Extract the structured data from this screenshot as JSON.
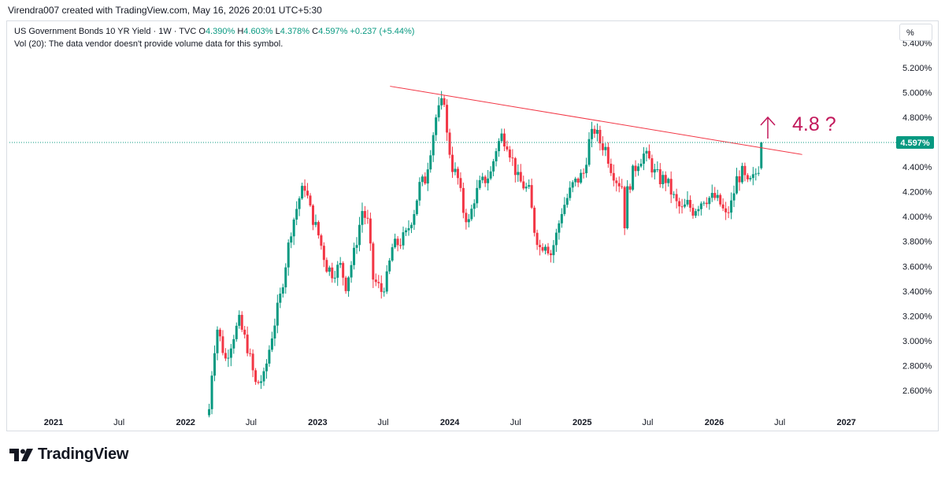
{
  "header": {
    "text": "Virendra007 created with TradingView.com, May 16, 2026 20:01 UTC+5:30"
  },
  "legend": {
    "symbol": "US Government Bonds 10 YR Yield · 1W · TVC",
    "open_label": "O",
    "open": "4.390%",
    "high_label": "H",
    "high": "4.603%",
    "low_label": "L",
    "low": "4.378%",
    "close_label": "C",
    "close": "4.597%",
    "change": "+0.237 (+5.44%)",
    "vol": "Vol (20): The data vendor doesn't provide volume data for this symbol."
  },
  "toolbar": {
    "percent_button": "%"
  },
  "footer": {
    "brand": "TradingView"
  },
  "colors": {
    "up": "#089981",
    "down": "#f23645",
    "trendline": "#f23645",
    "annotation": "#c2185b",
    "price_line": "#089981"
  },
  "chart_data": {
    "type": "candlestick",
    "title": "US Government Bonds 10 YR Yield",
    "timeframe": "1W",
    "source": "TVC",
    "y_range": [
      2.45,
      5.5
    ],
    "y_ticks": [
      "2.600%",
      "2.800%",
      "3.000%",
      "3.200%",
      "3.400%",
      "3.600%",
      "3.800%",
      "4.000%",
      "4.200%",
      "4.400%",
      "4.600%",
      "4.800%",
      "5.000%",
      "5.200%",
      "5.400%"
    ],
    "x_ticks": [
      "2021",
      "Jul",
      "2022",
      "Jul",
      "2023",
      "Jul",
      "2024",
      "Jul",
      "2025",
      "Jul",
      "2026",
      "Jul",
      "2027"
    ],
    "last_price": "4.597%",
    "trendline": {
      "from": {
        "date": "2023-07-20",
        "value": 5.05
      },
      "to": {
        "date": "2026-09-01",
        "value": 4.5
      }
    },
    "annotation": {
      "text": "4.8 ?",
      "arrow": "up"
    },
    "candles": {
      "start_date": "2022-03-07",
      "end_date": "2026-05-11",
      "close_path": [
        [
          0,
          2.45
        ],
        [
          1,
          2.75
        ],
        [
          2,
          2.95
        ],
        [
          3,
          3.1
        ],
        [
          6,
          2.85
        ],
        [
          9,
          3.05
        ],
        [
          11,
          3.15
        ],
        [
          14,
          2.95
        ],
        [
          17,
          2.65
        ],
        [
          20,
          2.7
        ],
        [
          23,
          3.05
        ],
        [
          26,
          3.35
        ],
        [
          30,
          3.9
        ],
        [
          33,
          4.15
        ],
        [
          35,
          4.25
        ],
        [
          37,
          4.05
        ],
        [
          40,
          3.85
        ],
        [
          43,
          3.6
        ],
        [
          45,
          3.55
        ],
        [
          48,
          3.6
        ],
        [
          50,
          3.45
        ],
        [
          53,
          3.7
        ],
        [
          56,
          4.05
        ],
        [
          58,
          3.95
        ],
        [
          60,
          3.5
        ],
        [
          63,
          3.4
        ],
        [
          65,
          3.5
        ],
        [
          67,
          3.75
        ],
        [
          70,
          3.8
        ],
        [
          72,
          3.85
        ],
        [
          75,
          4.05
        ],
        [
          77,
          4.25
        ],
        [
          79,
          4.3
        ],
        [
          81,
          4.55
        ],
        [
          83,
          4.8
        ],
        [
          85,
          4.9
        ],
        [
          86,
          4.95
        ],
        [
          87,
          4.65
        ],
        [
          89,
          4.4
        ],
        [
          91,
          4.3
        ],
        [
          93,
          4.05
        ],
        [
          95,
          3.95
        ],
        [
          97,
          4.15
        ],
        [
          99,
          4.25
        ],
        [
          101,
          4.3
        ],
        [
          103,
          4.35
        ],
        [
          105,
          4.55
        ],
        [
          107,
          4.65
        ],
        [
          109,
          4.6
        ],
        [
          111,
          4.45
        ],
        [
          113,
          4.3
        ],
        [
          115,
          4.25
        ],
        [
          117,
          4.2
        ],
        [
          119,
          3.9
        ],
        [
          121,
          3.75
        ],
        [
          123,
          3.8
        ],
        [
          125,
          3.7
        ],
        [
          127,
          3.85
        ],
        [
          129,
          4.05
        ],
        [
          131,
          4.15
        ],
        [
          133,
          4.25
        ],
        [
          135,
          4.3
        ],
        [
          137,
          4.35
        ],
        [
          139,
          4.6
        ],
        [
          141,
          4.7
        ],
        [
          143,
          4.6
        ],
        [
          145,
          4.55
        ],
        [
          147,
          4.4
        ],
        [
          149,
          4.3
        ],
        [
          151,
          4.25
        ],
        [
          152,
          3.95
        ],
        [
          153,
          4.2
        ],
        [
          155,
          4.35
        ],
        [
          157,
          4.45
        ],
        [
          159,
          4.5
        ],
        [
          161,
          4.45
        ],
        [
          163,
          4.35
        ],
        [
          165,
          4.3
        ],
        [
          167,
          4.3
        ],
        [
          169,
          4.2
        ],
        [
          171,
          4.1
        ],
        [
          173,
          4.05
        ],
        [
          175,
          4.1
        ],
        [
          177,
          4.05
        ],
        [
          179,
          4.1
        ],
        [
          181,
          4.15
        ],
        [
          183,
          4.15
        ],
        [
          185,
          4.15
        ],
        [
          187,
          4.1
        ],
        [
          189,
          4.0
        ],
        [
          191,
          4.1
        ],
        [
          193,
          4.3
        ],
        [
          195,
          4.35
        ],
        [
          197,
          4.25
        ],
        [
          199,
          4.3
        ],
        [
          201,
          4.4
        ],
        [
          202,
          4.597
        ]
      ]
    }
  }
}
